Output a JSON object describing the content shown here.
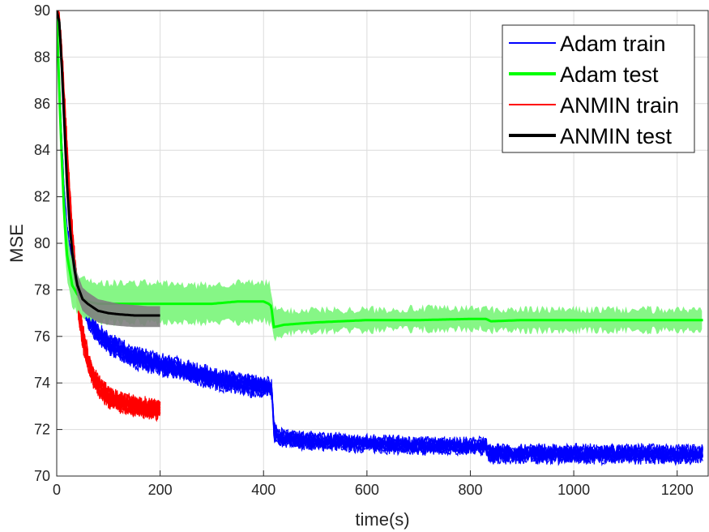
{
  "chart_data": {
    "type": "line",
    "title": "",
    "xlabel": "time(s)",
    "ylabel": "MSE",
    "xlim": [
      0,
      1260
    ],
    "ylim": [
      70,
      90
    ],
    "xticks": [
      0,
      200,
      400,
      600,
      800,
      1000,
      1200
    ],
    "yticks": [
      70,
      72,
      74,
      76,
      78,
      80,
      82,
      84,
      86,
      88,
      90
    ],
    "grid": true,
    "legend_position": "top-right",
    "legend": [
      "Adam train",
      "Adam test",
      "ANMIN train",
      "ANMIN test"
    ],
    "series": [
      {
        "name": "Adam train",
        "color": "#0000ff",
        "style": "band of repeated noisy runs",
        "x": [
          0,
          5,
          10,
          15,
          20,
          30,
          40,
          60,
          80,
          100,
          150,
          200,
          250,
          300,
          350,
          400,
          410,
          415,
          418,
          420,
          425,
          440,
          500,
          600,
          700,
          800,
          830,
          835,
          840,
          900,
          1000,
          1100,
          1200,
          1250
        ],
        "y": [
          90,
          87,
          84,
          82,
          80.5,
          78.8,
          78,
          76.8,
          76.1,
          75.7,
          75.1,
          74.8,
          74.5,
          74.2,
          74.0,
          73.8,
          73.8,
          73.8,
          73.0,
          72.0,
          71.7,
          71.6,
          71.5,
          71.4,
          71.3,
          71.3,
          71.3,
          71.0,
          70.95,
          70.95,
          70.95,
          70.95,
          70.95,
          70.95
        ],
        "spread": [
          0,
          0.3,
          0.3,
          0.3,
          0.3,
          0.3,
          0.3,
          0.3,
          0.35,
          0.35,
          0.35,
          0.35,
          0.35,
          0.35,
          0.35,
          0.35,
          0.35,
          0.35,
          0.4,
          0.35,
          0.3,
          0.25,
          0.25,
          0.25,
          0.25,
          0.25,
          0.25,
          0.3,
          0.28,
          0.28,
          0.28,
          0.28,
          0.28,
          0.28
        ]
      },
      {
        "name": "Adam test",
        "color": "#00ff00",
        "band_color": "#7ff57f",
        "x": [
          0,
          5,
          10,
          15,
          20,
          30,
          40,
          60,
          80,
          100,
          150,
          200,
          250,
          300,
          350,
          400,
          410,
          415,
          420,
          440,
          500,
          600,
          700,
          800,
          830,
          840,
          900,
          1000,
          1100,
          1200,
          1250
        ],
        "y": [
          90,
          86.5,
          83.5,
          81,
          79.5,
          78.2,
          77.8,
          77.5,
          77.4,
          77.4,
          77.4,
          77.4,
          77.4,
          77.4,
          77.5,
          77.5,
          77.4,
          77.3,
          76.4,
          76.5,
          76.6,
          76.7,
          76.7,
          76.75,
          76.75,
          76.65,
          76.7,
          76.7,
          76.7,
          76.7,
          76.7
        ],
        "band_upper": [
          90,
          87.5,
          84.5,
          82,
          80.5,
          79.2,
          78.6,
          78.5,
          78.3,
          78.3,
          78.3,
          78.3,
          78.2,
          78.2,
          78.3,
          78.3,
          78.3,
          78.0,
          77.2,
          77.1,
          77.15,
          77.15,
          77.2,
          77.2,
          77.2,
          77.15,
          77.15,
          77.15,
          77.15,
          77.15,
          77.15
        ],
        "band_lower": [
          90,
          85.5,
          82.5,
          80,
          78.5,
          77.3,
          77.0,
          76.7,
          76.6,
          76.6,
          76.6,
          76.6,
          76.6,
          76.6,
          76.6,
          76.7,
          76.6,
          76.5,
          75.9,
          76.1,
          76.2,
          76.25,
          76.3,
          76.3,
          76.3,
          76.25,
          76.25,
          76.25,
          76.25,
          76.25,
          76.25
        ]
      },
      {
        "name": "ANMIN train",
        "color": "#ff0000",
        "style": "band of repeated noisy runs",
        "x": [
          0,
          5,
          10,
          15,
          20,
          25,
          30,
          35,
          40,
          45,
          50,
          60,
          70,
          80,
          100,
          120,
          150,
          175,
          200
        ],
        "y": [
          90,
          89.5,
          88,
          86,
          84,
          82,
          80.5,
          79.0,
          77.8,
          76.8,
          76.0,
          75.0,
          74.3,
          73.9,
          73.4,
          73.2,
          73.0,
          72.9,
          72.85
        ],
        "spread": [
          0,
          0.3,
          0.4,
          0.5,
          0.5,
          0.5,
          0.5,
          0.5,
          0.5,
          0.5,
          0.45,
          0.4,
          0.35,
          0.3,
          0.3,
          0.3,
          0.3,
          0.3,
          0.3
        ]
      },
      {
        "name": "ANMIN test",
        "color": "#000000",
        "band_color": "#7f7f7f",
        "x": [
          0,
          5,
          10,
          15,
          20,
          25,
          30,
          35,
          40,
          50,
          60,
          80,
          100,
          120,
          150,
          175,
          200
        ],
        "y": [
          90,
          89.5,
          87.5,
          85,
          82.5,
          80.8,
          79.6,
          78.8,
          78.2,
          77.6,
          77.4,
          77.1,
          77.0,
          76.95,
          76.9,
          76.9,
          76.9
        ],
        "band_upper": [
          90,
          89.8,
          88,
          85.6,
          83,
          81.3,
          80.1,
          79.3,
          78.7,
          78.1,
          77.9,
          77.6,
          77.5,
          77.4,
          77.35,
          77.3,
          77.3
        ],
        "band_lower": [
          90,
          89.2,
          87,
          84.4,
          82,
          80.3,
          79.1,
          78.3,
          77.7,
          77.1,
          76.9,
          76.6,
          76.5,
          76.45,
          76.4,
          76.4,
          76.4
        ]
      }
    ]
  }
}
